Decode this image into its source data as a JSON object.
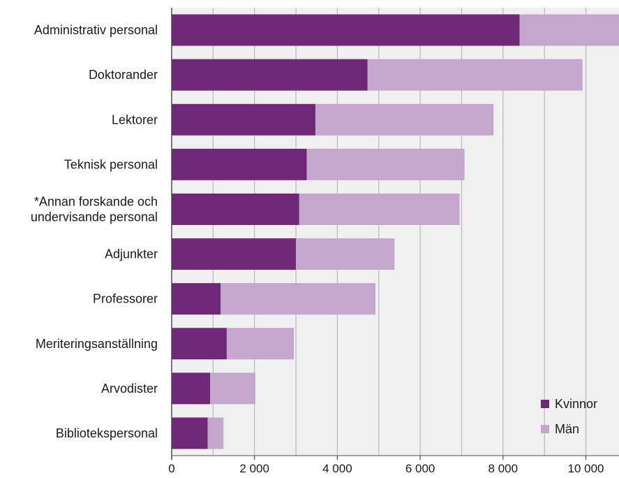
{
  "chart_data": {
    "type": "bar",
    "orientation": "horizontal",
    "stacked": true,
    "title": "",
    "xlabel": "",
    "ylabel": "",
    "xlim": [
      0,
      10800
    ],
    "x_ticks": [
      0,
      2000,
      4000,
      6000,
      8000,
      10000
    ],
    "x_tick_labels": [
      "0",
      "2 000",
      "4 000",
      "6 000",
      "8 000",
      "10 000"
    ],
    "grid": "vertical",
    "legend_position": "bottom-right",
    "categories": [
      [
        "Administrativ personal"
      ],
      [
        "Doktorander"
      ],
      [
        "Lektorer"
      ],
      [
        "Teknisk personal"
      ],
      [
        "*Annan forskande och",
        "undervisande personal"
      ],
      [
        "Adjunkter"
      ],
      [
        "Professorer"
      ],
      [
        "Meriteringsanställning"
      ],
      [
        "Arvodister"
      ],
      [
        "Bibliotekspersonal"
      ]
    ],
    "series": [
      {
        "name": "Kvinnor",
        "color": "#6f2878",
        "values": [
          8400,
          4730,
          3470,
          3260,
          3080,
          3000,
          1180,
          1330,
          930,
          870
        ]
      },
      {
        "name": "Män",
        "color": "#c5a6cc",
        "values": [
          2500,
          5190,
          4300,
          3810,
          3870,
          2380,
          3740,
          1620,
          1090,
          380
        ]
      }
    ]
  },
  "colors": {
    "plot_background": "#f0f0f0",
    "gridline": "#b8b8b8",
    "axis": "#4d4d4d"
  }
}
